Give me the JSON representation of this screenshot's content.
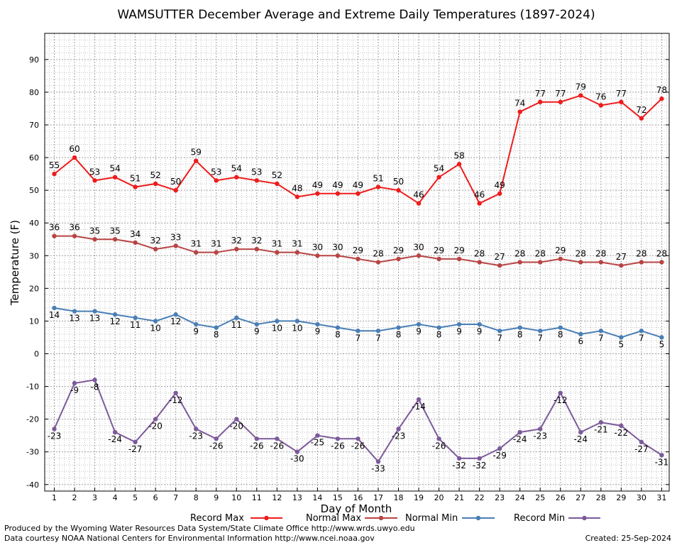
{
  "chart_data": {
    "type": "line",
    "title": "WAMSUTTER December Average and Extreme Daily Temperatures (1897-2024)",
    "xlabel": "Day of Month",
    "ylabel": "Temperature (F)",
    "xlim": [
      1,
      31
    ],
    "ylim": [
      -42,
      98
    ],
    "yticks": [
      -40,
      -30,
      -20,
      -10,
      0,
      10,
      20,
      30,
      40,
      50,
      60,
      70,
      80,
      90
    ],
    "grid": true,
    "legend_position": "bottom",
    "x": [
      1,
      2,
      3,
      4,
      5,
      6,
      7,
      8,
      9,
      10,
      11,
      12,
      13,
      14,
      15,
      16,
      17,
      18,
      19,
      20,
      21,
      22,
      23,
      24,
      25,
      26,
      27,
      28,
      29,
      30,
      31
    ],
    "series": [
      {
        "name": "Record Max",
        "color": "#ee1c1c",
        "values": [
          55,
          60,
          53,
          54,
          51,
          52,
          50,
          59,
          53,
          54,
          53,
          52,
          48,
          49,
          49,
          49,
          51,
          50,
          46,
          54,
          58,
          46,
          49,
          74,
          77,
          77,
          79,
          76,
          77,
          72,
          78
        ]
      },
      {
        "name": "Normal Max",
        "color": "#b84444",
        "values": [
          36,
          36,
          35,
          35,
          34,
          32,
          33,
          31,
          31,
          32,
          32,
          31,
          31,
          30,
          30,
          29,
          28,
          29,
          30,
          29,
          29,
          28,
          27,
          28,
          28,
          29,
          28,
          28,
          27,
          28,
          28
        ]
      },
      {
        "name": "Normal Min",
        "color": "#4a7fb5",
        "values": [
          14,
          13,
          13,
          12,
          11,
          10,
          12,
          9,
          8,
          11,
          9,
          10,
          10,
          9,
          8,
          7,
          7,
          8,
          9,
          8,
          9,
          9,
          7,
          8,
          7,
          8,
          6,
          7,
          5,
          7,
          5
        ]
      },
      {
        "name": "Record Min",
        "color": "#7c5a9a",
        "values": [
          -23,
          -9,
          -8,
          -24,
          -27,
          -20,
          -12,
          -23,
          -26,
          -20,
          -26,
          -26,
          -30,
          -25,
          -26,
          -26,
          -33,
          -23,
          -14,
          -26,
          -32,
          -32,
          -29,
          -24,
          -23,
          -12,
          -24,
          -21,
          -22,
          -27,
          -31
        ]
      }
    ]
  },
  "footer": {
    "credit_line1": "Produced by the Wyoming Water Resources Data System/State Climate Office http://www.wrds.uwyo.edu",
    "credit_line2": "Data courtesy NOAA National Centers for Environmental Information http://www.ncei.noaa.gov",
    "created": "Created:  25-Sep-2024"
  }
}
